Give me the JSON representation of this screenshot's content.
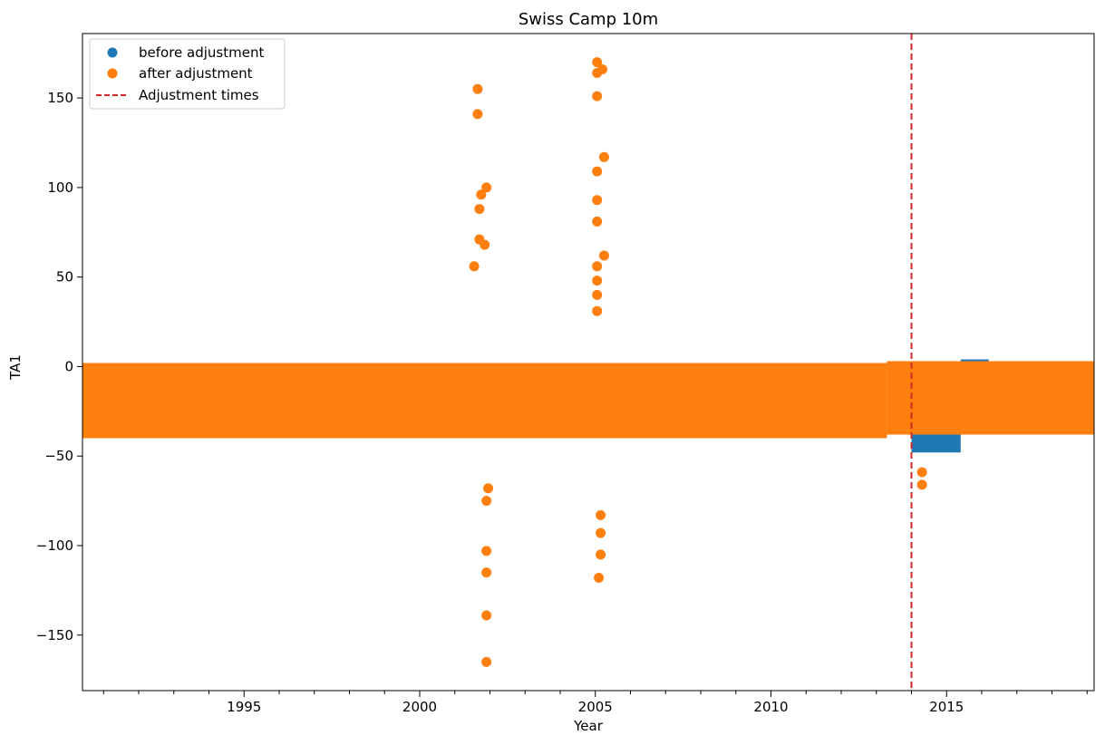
{
  "chart_data": {
    "type": "scatter",
    "title": "Swiss Camp 10m",
    "xlabel": "Year",
    "ylabel": "TA1",
    "xlim": [
      1990.4,
      2019.2
    ],
    "ylim": [
      -181,
      186
    ],
    "x_ticks": [
      1995,
      2000,
      2005,
      2010,
      2015
    ],
    "x_tick_labels": [
      "1995",
      "2000",
      "2005",
      "2010",
      "2015"
    ],
    "y_ticks": [
      -150,
      -100,
      -50,
      0,
      50,
      100,
      150
    ],
    "y_tick_labels": [
      "−150",
      "−100",
      "−50",
      "0",
      "50",
      "100",
      "150"
    ],
    "grid": false,
    "legend": {
      "position": "top-left",
      "entries": [
        {
          "label": "before adjustment",
          "marker": "circle",
          "color": "#1f77b4"
        },
        {
          "label": "after adjustment",
          "marker": "circle",
          "color": "#ff7f0e"
        },
        {
          "label": "Adjustment times",
          "marker": "dashed-line",
          "color": "#d62728"
        }
      ]
    },
    "adjustment_times": [
      2014.0
    ],
    "series": [
      {
        "name": "before adjustment",
        "color": "#1f77b4",
        "bands": [
          {
            "x": [
              2014.0,
              2015.4
            ],
            "lower": -48,
            "upper": 3
          },
          {
            "x": [
              2015.4,
              2016.2
            ],
            "lower": -28,
            "upper": 4
          }
        ]
      },
      {
        "name": "after adjustment",
        "color": "#ff7f0e",
        "bands": [
          {
            "x": [
              1990.4,
              2013.3
            ],
            "lower": -40,
            "upper": 2
          },
          {
            "x": [
              2013.3,
              2019.2
            ],
            "lower": -38,
            "upper": 3
          }
        ],
        "spikes": [
          {
            "x": 2001.65,
            "y": 155
          },
          {
            "x": 2001.65,
            "y": 141
          },
          {
            "x": 2001.75,
            "y": 96
          },
          {
            "x": 2001.7,
            "y": 88
          },
          {
            "x": 2001.9,
            "y": 100
          },
          {
            "x": 2001.7,
            "y": 71
          },
          {
            "x": 2001.85,
            "y": 68
          },
          {
            "x": 2001.55,
            "y": 56
          },
          {
            "x": 2001.95,
            "y": -68
          },
          {
            "x": 2001.9,
            "y": -75
          },
          {
            "x": 2001.9,
            "y": -103
          },
          {
            "x": 2001.9,
            "y": -115
          },
          {
            "x": 2001.9,
            "y": -139
          },
          {
            "x": 2001.9,
            "y": -165
          },
          {
            "x": 2005.05,
            "y": 170
          },
          {
            "x": 2005.05,
            "y": 164
          },
          {
            "x": 2005.2,
            "y": 166
          },
          {
            "x": 2005.05,
            "y": 151
          },
          {
            "x": 2005.25,
            "y": 117
          },
          {
            "x": 2005.05,
            "y": 109
          },
          {
            "x": 2005.05,
            "y": 93
          },
          {
            "x": 2005.05,
            "y": 81
          },
          {
            "x": 2005.25,
            "y": 62
          },
          {
            "x": 2005.05,
            "y": 56
          },
          {
            "x": 2005.05,
            "y": 48
          },
          {
            "x": 2005.05,
            "y": 40
          },
          {
            "x": 2005.05,
            "y": 31
          },
          {
            "x": 2005.15,
            "y": -83
          },
          {
            "x": 2005.15,
            "y": -93
          },
          {
            "x": 2005.15,
            "y": -105
          },
          {
            "x": 2005.1,
            "y": -118
          },
          {
            "x": 2014.3,
            "y": -66
          },
          {
            "x": 2014.3,
            "y": -59
          }
        ]
      }
    ]
  }
}
